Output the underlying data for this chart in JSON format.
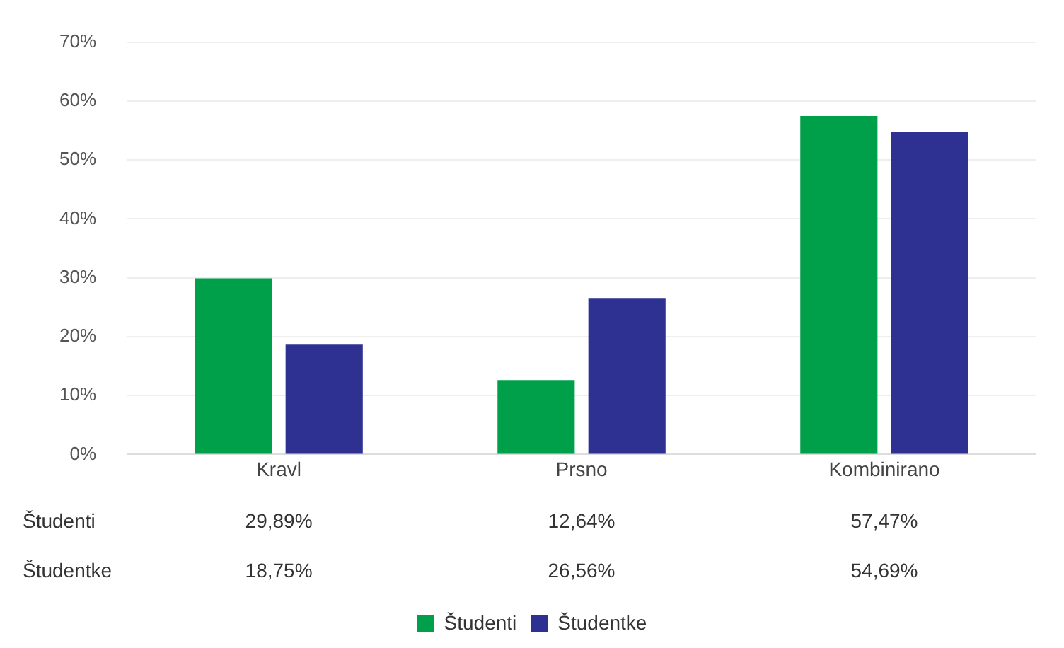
{
  "chart_data": {
    "type": "bar",
    "categories": [
      "Kravl",
      "Prsno",
      "Kombinirano"
    ],
    "series": [
      {
        "name": "Študenti",
        "color": "#00a04b",
        "values": [
          29.89,
          12.64,
          57.47
        ],
        "value_labels": [
          "29,89%",
          "12,64%",
          "57,47%"
        ]
      },
      {
        "name": "Študentke",
        "color": "#2e3192",
        "values": [
          18.75,
          26.56,
          54.69
        ],
        "value_labels": [
          "18,75%",
          "26,56%",
          "54,69%"
        ]
      }
    ],
    "ylim": [
      0,
      70
    ],
    "yticks": [
      {
        "value": 0,
        "label": "0%"
      },
      {
        "value": 10,
        "label": "10%"
      },
      {
        "value": 20,
        "label": "20%"
      },
      {
        "value": 30,
        "label": "30%"
      },
      {
        "value": 40,
        "label": "40%"
      },
      {
        "value": 50,
        "label": "50%"
      },
      {
        "value": 60,
        "label": "60%"
      },
      {
        "value": 70,
        "label": "70%"
      }
    ],
    "grid": "y",
    "legend": "bottom"
  }
}
